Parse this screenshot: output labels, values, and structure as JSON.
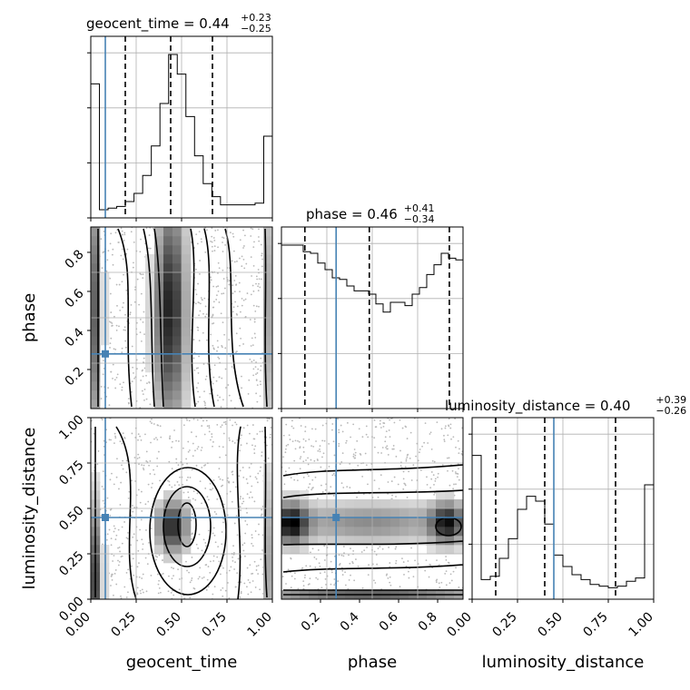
{
  "chart_data": {
    "type": "corner",
    "parameters": [
      "geocent_time",
      "phase",
      "luminosity_distance"
    ],
    "injection": {
      "geocent_time": 0.08,
      "phase": 0.28,
      "luminosity_distance": 0.45
    },
    "titles": {
      "geocent_time": {
        "name": "geocent_time",
        "median": "0.44",
        "plus": "+0.23",
        "minus": "−0.25"
      },
      "phase": {
        "name": "phase",
        "median": "0.46",
        "plus": "+0.41",
        "minus": "−0.34"
      },
      "luminosity_distance": {
        "name": "luminosity_distance",
        "median": "0.40",
        "plus": "+0.39",
        "minus": "−0.26"
      }
    },
    "axis_labels": {
      "bottom": [
        "geocent_time",
        "phase",
        "luminosity_distance"
      ],
      "left": [
        "phase",
        "luminosity_distance"
      ]
    },
    "tick_labels": {
      "geocent_time_x": [
        "0.00",
        "0.25",
        "0.50",
        "0.75",
        "1.00"
      ],
      "phase_x": [
        "0.2",
        "0.4",
        "0.6",
        "0.8"
      ],
      "luminosity_distance_x": [
        "0.00",
        "0.25",
        "0.50",
        "0.75",
        "1.00"
      ],
      "phase_y": [
        "0.2",
        "0.4",
        "0.6",
        "0.8"
      ],
      "luminosity_distance_y": [
        "0.00",
        "0.25",
        "0.50",
        "0.75",
        "1.00"
      ]
    },
    "histograms": {
      "geocent_time": {
        "range": [
          0,
          1
        ],
        "quantiles": [
          0.19,
          0.44,
          0.67
        ],
        "values": [
          0.82,
          0.05,
          0.06,
          0.07,
          0.1,
          0.15,
          0.26,
          0.44,
          0.7,
          1.0,
          0.88,
          0.62,
          0.38,
          0.21,
          0.13,
          0.08,
          0.08,
          0.08,
          0.08,
          0.09,
          0.5
        ]
      },
      "phase": {
        "range": [
          0,
          0.93
        ],
        "quantiles": [
          0.12,
          0.45,
          0.86
        ],
        "values": [
          1.0,
          1.0,
          1.0,
          0.96,
          0.95,
          0.89,
          0.85,
          0.8,
          0.79,
          0.75,
          0.72,
          0.72,
          0.7,
          0.64,
          0.59,
          0.65,
          0.65,
          0.63,
          0.7,
          0.74,
          0.82,
          0.88,
          0.95,
          0.92,
          0.91
        ]
      },
      "luminosity_distance": {
        "range": [
          0,
          1
        ],
        "quantiles": [
          0.13,
          0.4,
          0.79
        ],
        "values": [
          0.88,
          0.12,
          0.14,
          0.25,
          0.37,
          0.55,
          0.63,
          0.6,
          0.46,
          0.27,
          0.2,
          0.15,
          0.12,
          0.09,
          0.08,
          0.07,
          0.08,
          0.11,
          0.13,
          0.7
        ]
      }
    },
    "grid": true
  }
}
